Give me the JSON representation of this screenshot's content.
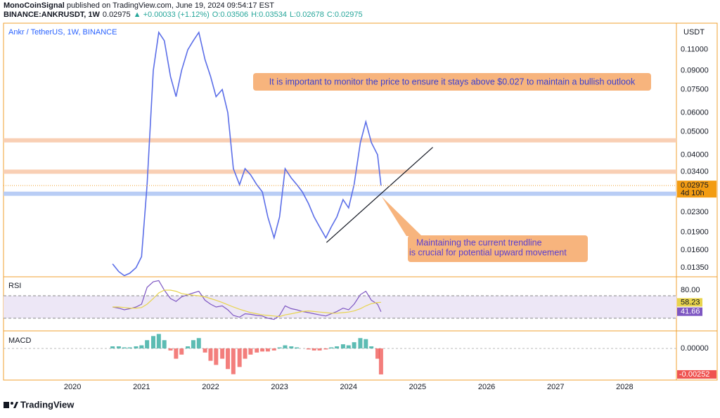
{
  "header": {
    "author": "MonoCoinSignal",
    "published": " published on TradingView.com, June 19, 2024 09:54:17 EST",
    "symbol": "BINANCE:ANKRUSDT, 1W",
    "last": "0.02975",
    "change": "▲ +0.00033 (+1.12%)",
    "open": "O:0.03506",
    "high": "H:0.03534",
    "low": "L:0.02678",
    "close": "C:0.02975"
  },
  "footer": {
    "logo": "TradingView"
  },
  "chart_data": [
    {
      "type": "line",
      "title": "Ankr / TetherUS, 1W, BINANCE",
      "y_label": "USDT",
      "countdown": "4d 10h",
      "log": true,
      "x": [
        2020.58,
        2020.67,
        2020.75,
        2020.83,
        2020.92,
        2021.0,
        2021.08,
        2021.17,
        2021.25,
        2021.33,
        2021.42,
        2021.5,
        2021.58,
        2021.67,
        2021.75,
        2021.83,
        2021.92,
        2022.0,
        2022.08,
        2022.17,
        2022.25,
        2022.33,
        2022.42,
        2022.5,
        2022.58,
        2022.67,
        2022.75,
        2022.83,
        2022.92,
        2023.0,
        2023.08,
        2023.17,
        2023.25,
        2023.33,
        2023.42,
        2023.5,
        2023.58,
        2023.67,
        2023.75,
        2023.83,
        2023.92,
        2024.0,
        2024.08,
        2024.17,
        2024.25,
        2024.33,
        2024.42,
        2024.47
      ],
      "series": [
        {
          "color": "#5b6ee8",
          "values": [
            0.014,
            0.013,
            0.0125,
            0.0128,
            0.0135,
            0.015,
            0.03,
            0.09,
            0.13,
            0.12,
            0.085,
            0.07,
            0.09,
            0.11,
            0.12,
            0.13,
            0.1,
            0.085,
            0.07,
            0.075,
            0.06,
            0.035,
            0.03,
            0.035,
            0.033,
            0.03,
            0.028,
            0.022,
            0.018,
            0.022,
            0.035,
            0.032,
            0.03,
            0.028,
            0.025,
            0.022,
            0.02,
            0.018,
            0.02,
            0.022,
            0.026,
            0.024,
            0.03,
            0.045,
            0.055,
            0.045,
            0.04,
            0.02975
          ]
        }
      ],
      "xlim": [
        2019.0,
        2028.75
      ],
      "xticks": [
        2020,
        2021,
        2022,
        2023,
        2024,
        2025,
        2026,
        2027,
        2028
      ],
      "ylim": [
        0.01245,
        0.142
      ],
      "yticks": [
        {
          "value": 0.11,
          "label": "0.11000"
        },
        {
          "value": 0.09,
          "label": "0.09000"
        },
        {
          "value": 0.075,
          "label": "0.07500"
        },
        {
          "value": 0.06,
          "label": "0.06000"
        },
        {
          "value": 0.05,
          "label": "0.05000"
        },
        {
          "value": 0.04,
          "label": "0.04000"
        },
        {
          "value": 0.034,
          "label": "0.03400"
        },
        {
          "value": 0.023,
          "label": "0.02300"
        },
        {
          "value": 0.019,
          "label": "0.01900"
        },
        {
          "value": 0.016,
          "label": "0.01600"
        },
        {
          "value": 0.0135,
          "label": "0.01350"
        }
      ],
      "levels": [
        {
          "value": 0.046,
          "color": "#f9cfb4"
        },
        {
          "value": 0.034,
          "color": "#f9cfb4"
        },
        {
          "value": 0.0275,
          "color": "#b9cdf5"
        }
      ],
      "trendline": {
        "x": [
          2023.68,
          2025.22
        ],
        "y": [
          0.0172,
          0.043
        ]
      },
      "annotations": [
        "It is important to monitor the price to ensure it stays above $0.027 to maintain a bullish outlook",
        "Maintaining the current trendline",
        "is crucial for potential upward movement"
      ]
    },
    {
      "type": "line",
      "title": "RSI",
      "ylim": [
        8.75,
        102.5
      ],
      "yticks": [
        {
          "value": 80,
          "label": "80.00"
        }
      ],
      "bands": [
        70,
        30
      ],
      "series": [
        {
          "color": "#7e57c2",
          "values": [
            50,
            48,
            45,
            47,
            50,
            55,
            85,
            95,
            97,
            80,
            65,
            60,
            68,
            72,
            75,
            78,
            62,
            55,
            50,
            52,
            45,
            35,
            32,
            38,
            37,
            35,
            34,
            30,
            28,
            35,
            52,
            47,
            45,
            42,
            40,
            38,
            36,
            34,
            38,
            42,
            48,
            45,
            55,
            72,
            78,
            62,
            55,
            41.66
          ]
        },
        {
          "color": "#e8d44d",
          "values": [
            50,
            50,
            49,
            48,
            48,
            49,
            55,
            65,
            75,
            80,
            80,
            78,
            74,
            72,
            71,
            70,
            68,
            65,
            62,
            58,
            54,
            50,
            46,
            43,
            40,
            38,
            36,
            35,
            34,
            33,
            36,
            38,
            40,
            42,
            43,
            42,
            41,
            40,
            39,
            39,
            40,
            41,
            43,
            47,
            52,
            56,
            58,
            58.23
          ]
        }
      ]
    },
    {
      "type": "bar",
      "title": "MACD",
      "ylim": [
        -0.003,
        0.00163
      ],
      "yticks": [
        {
          "value": 0,
          "label": "0.00000"
        }
      ],
      "values": [
        0.0002,
        0.0002,
        0.0001,
        0.0001,
        0.0002,
        0.0003,
        0.0008,
        0.0012,
        0.0014,
        0.0008,
        -0.0002,
        -0.001,
        -0.0006,
        0.0002,
        0.0008,
        0.001,
        -0.0004,
        -0.0012,
        -0.0016,
        -0.001,
        -0.002,
        -0.0025,
        -0.0018,
        -0.001,
        -0.0006,
        -0.0004,
        -0.0003,
        -0.0003,
        -0.0002,
        0.0001,
        0.0003,
        0.0002,
        0.0001,
        0,
        -0.0001,
        -0.0002,
        -0.0002,
        -0.0001,
        0.0001,
        0.0002,
        0.0004,
        0.0003,
        0.0006,
        0.001,
        0.0009,
        0.0002,
        -0.001,
        -0.00252
      ],
      "colors": [
        "#26a69a",
        "#ef5350"
      ]
    }
  ]
}
